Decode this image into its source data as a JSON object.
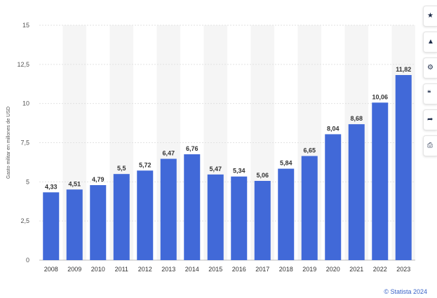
{
  "chart_data": {
    "type": "bar",
    "title": "",
    "xlabel": "",
    "ylabel": "Gasto militar en millones de USD",
    "categories": [
      "2008",
      "2009",
      "2010",
      "2011",
      "2012",
      "2013",
      "2014",
      "2015",
      "2016",
      "2017",
      "2018",
      "2019",
      "2020",
      "2021",
      "2022",
      "2023"
    ],
    "values": [
      4.33,
      4.51,
      4.79,
      5.5,
      5.72,
      6.47,
      6.76,
      5.47,
      5.34,
      5.06,
      5.84,
      6.65,
      8.04,
      8.68,
      10.06,
      11.82
    ],
    "value_labels": [
      "4,33",
      "4,51",
      "4,79",
      "5,5",
      "5,72",
      "6,47",
      "6,76",
      "5,47",
      "5,34",
      "5,06",
      "5,84",
      "6,65",
      "8,04",
      "8,68",
      "10,06",
      "11,82"
    ],
    "ylim": [
      0,
      15
    ],
    "yticks": [
      0,
      2.5,
      5,
      7.5,
      10,
      12.5,
      15
    ],
    "ytick_labels": [
      "0",
      "2,5",
      "5",
      "7,5",
      "10",
      "12,5",
      "15"
    ],
    "grid": true,
    "bar_color": "#4169d8"
  },
  "credit": "© Statista 2024",
  "toolbar": {
    "buttons": [
      {
        "name": "star-icon",
        "glyph": "★"
      },
      {
        "name": "bell-icon",
        "glyph": "▲"
      },
      {
        "name": "gear-icon",
        "glyph": "⚙"
      },
      {
        "name": "quote-icon",
        "glyph": "❝"
      },
      {
        "name": "share-icon",
        "glyph": "➦"
      },
      {
        "name": "print-icon",
        "glyph": "⎙"
      }
    ]
  }
}
